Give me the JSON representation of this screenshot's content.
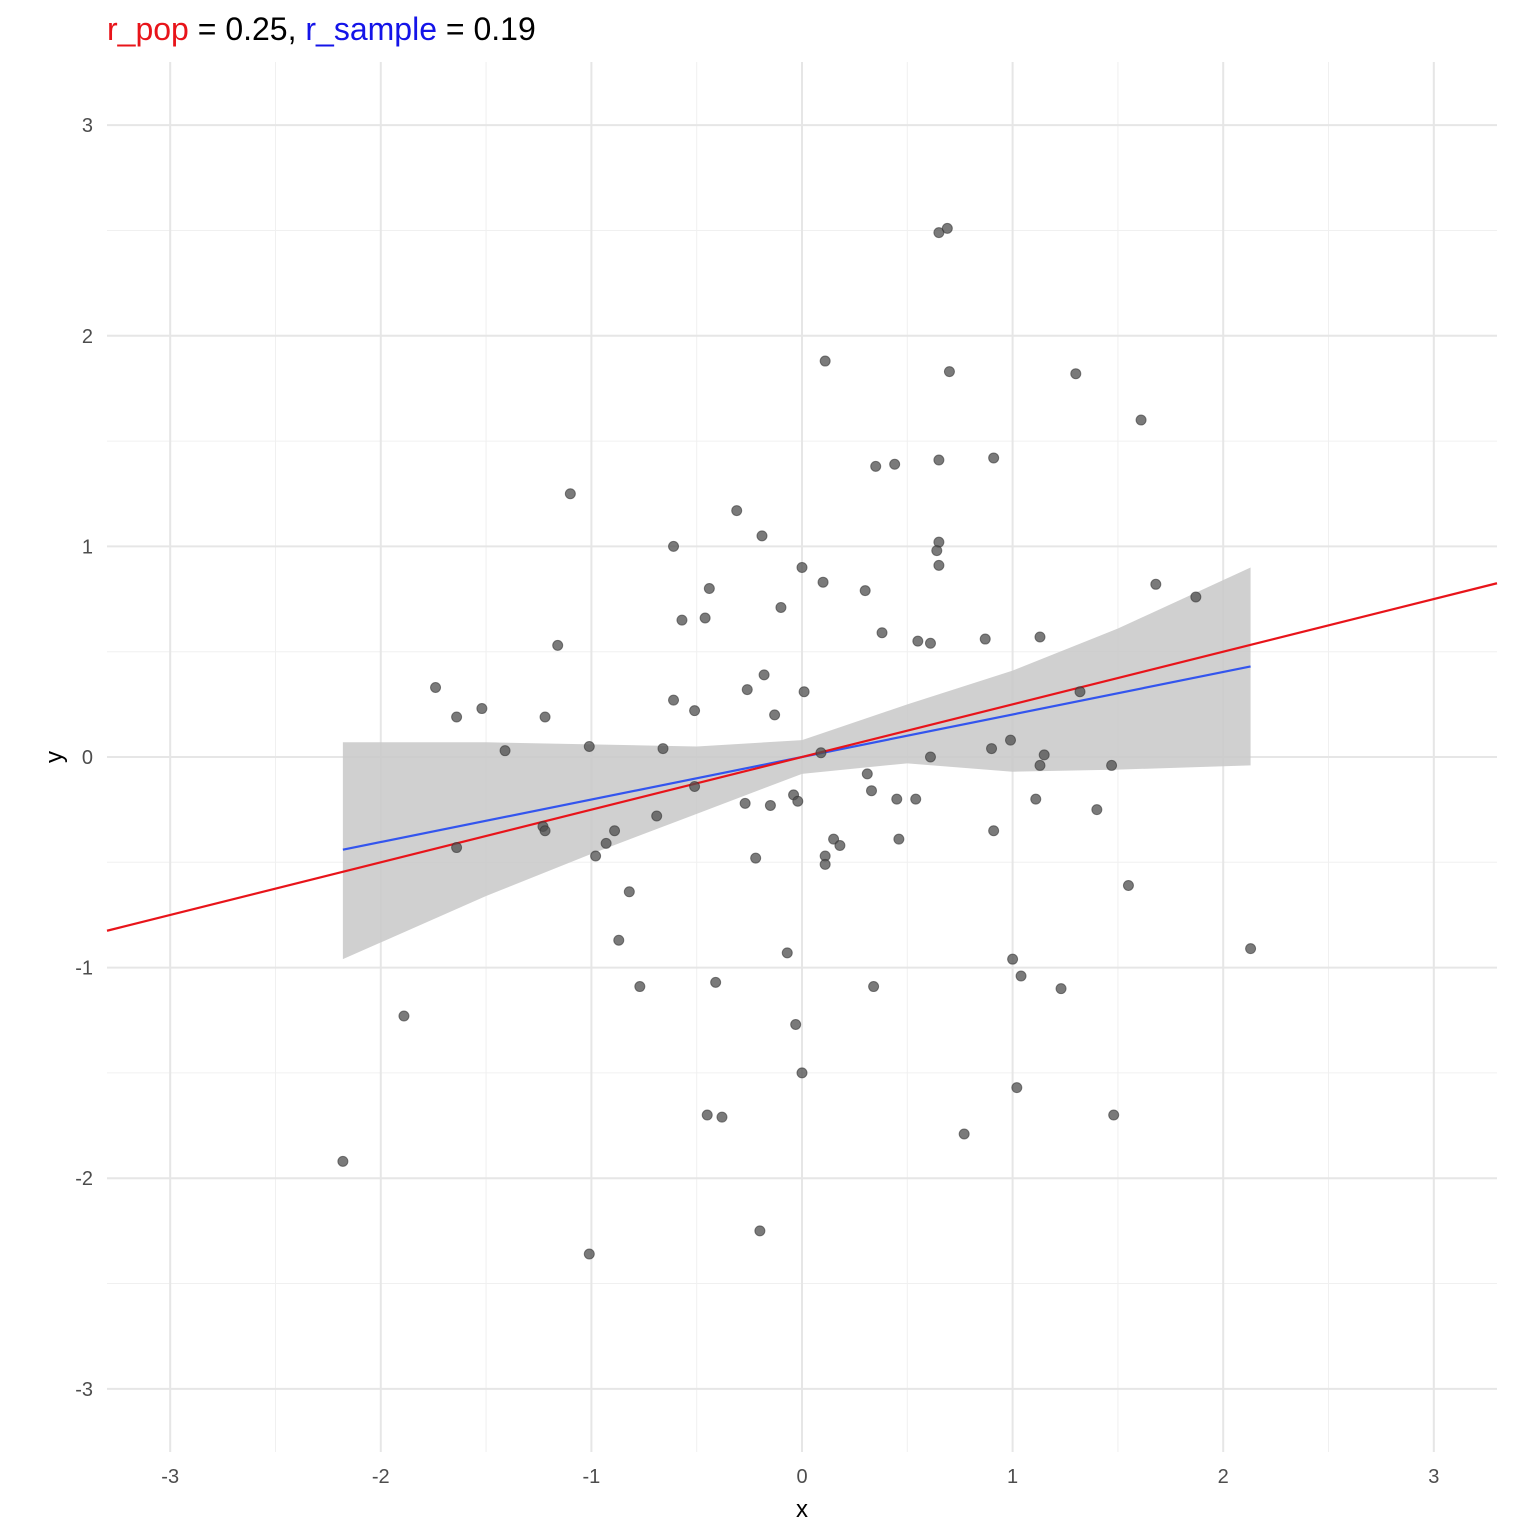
{
  "chart_data": {
    "type": "scatter",
    "title_parts": [
      {
        "text": "r_pop",
        "color": "#e8141a"
      },
      {
        "text": " = 0.25, ",
        "color": "#000000"
      },
      {
        "text": "r_sample",
        "color": "#1414e8"
      },
      {
        "text": " = 0.19",
        "color": "#000000"
      }
    ],
    "xlabel": "x",
    "ylabel": "y",
    "xlim": [
      -3.3,
      3.3
    ],
    "ylim": [
      -3.3,
      3.3
    ],
    "x_ticks": [
      -3,
      -2,
      -1,
      0,
      1,
      2,
      3
    ],
    "y_ticks": [
      -3,
      -2,
      -1,
      0,
      1,
      2,
      3
    ],
    "grid": true,
    "colors": {
      "points": "#4d4d4d",
      "population_line": "#e8141a",
      "sample_line": "#3355ee",
      "confidence_band": "#c8c8c8",
      "grid_major": "#e6e6e6",
      "grid_minor": "#f0f0f0"
    },
    "population_line": {
      "slope": 0.25,
      "intercept": 0
    },
    "sample_line": {
      "x_range": [
        -2.18,
        2.13
      ],
      "y_start": -0.44,
      "y_end": 0.43
    },
    "confidence_band": {
      "x": [
        -2.18,
        -1.5,
        -1.0,
        -0.5,
        0.0,
        0.5,
        1.0,
        1.5,
        2.13
      ],
      "lower": [
        -0.96,
        -0.66,
        -0.46,
        -0.27,
        -0.08,
        -0.03,
        -0.07,
        -0.06,
        -0.04
      ],
      "upper": [
        0.07,
        0.07,
        0.06,
        0.05,
        0.08,
        0.25,
        0.41,
        0.61,
        0.9
      ]
    },
    "points": [
      [
        0.65,
        2.49
      ],
      [
        0.69,
        2.51
      ],
      [
        0.11,
        1.88
      ],
      [
        0.7,
        1.83
      ],
      [
        1.3,
        1.82
      ],
      [
        1.61,
        1.6
      ],
      [
        0.91,
        1.42
      ],
      [
        0.44,
        1.39
      ],
      [
        0.35,
        1.38
      ],
      [
        0.65,
        1.41
      ],
      [
        -1.1,
        1.25
      ],
      [
        -0.31,
        1.17
      ],
      [
        -0.19,
        1.05
      ],
      [
        0.65,
        1.02
      ],
      [
        -0.61,
        1.0
      ],
      [
        0.64,
        0.98
      ],
      [
        0.65,
        0.91
      ],
      [
        0.0,
        0.9
      ],
      [
        0.1,
        0.83
      ],
      [
        -0.44,
        0.8
      ],
      [
        0.3,
        0.79
      ],
      [
        1.68,
        0.82
      ],
      [
        1.87,
        0.76
      ],
      [
        -0.1,
        0.71
      ],
      [
        -0.46,
        0.66
      ],
      [
        -0.57,
        0.65
      ],
      [
        0.38,
        0.59
      ],
      [
        0.87,
        0.56
      ],
      [
        1.13,
        0.57
      ],
      [
        0.55,
        0.55
      ],
      [
        0.61,
        0.54
      ],
      [
        -1.16,
        0.53
      ],
      [
        -0.18,
        0.39
      ],
      [
        -1.74,
        0.33
      ],
      [
        -0.26,
        0.32
      ],
      [
        0.01,
        0.31
      ],
      [
        1.32,
        0.31
      ],
      [
        -0.61,
        0.27
      ],
      [
        -1.52,
        0.23
      ],
      [
        -0.51,
        0.22
      ],
      [
        -0.13,
        0.2
      ],
      [
        -1.64,
        0.19
      ],
      [
        -1.22,
        0.19
      ],
      [
        -1.01,
        0.05
      ],
      [
        -0.66,
        0.04
      ],
      [
        -1.41,
        0.03
      ],
      [
        0.09,
        0.02
      ],
      [
        0.9,
        0.04
      ],
      [
        0.99,
        0.08
      ],
      [
        1.15,
        0.01
      ],
      [
        0.61,
        0.0
      ],
      [
        1.13,
        -0.04
      ],
      [
        1.47,
        -0.04
      ],
      [
        0.31,
        -0.08
      ],
      [
        -0.51,
        -0.14
      ],
      [
        0.33,
        -0.16
      ],
      [
        -0.04,
        -0.18
      ],
      [
        -0.02,
        -0.21
      ],
      [
        0.45,
        -0.2
      ],
      [
        0.54,
        -0.2
      ],
      [
        1.11,
        -0.2
      ],
      [
        -0.27,
        -0.22
      ],
      [
        -0.15,
        -0.23
      ],
      [
        1.4,
        -0.25
      ],
      [
        -0.69,
        -0.28
      ],
      [
        -1.23,
        -0.33
      ],
      [
        -1.22,
        -0.35
      ],
      [
        -0.89,
        -0.35
      ],
      [
        0.91,
        -0.35
      ],
      [
        0.15,
        -0.39
      ],
      [
        0.46,
        -0.39
      ],
      [
        -0.93,
        -0.41
      ],
      [
        0.18,
        -0.42
      ],
      [
        -1.64,
        -0.43
      ],
      [
        -0.98,
        -0.47
      ],
      [
        0.11,
        -0.47
      ],
      [
        -0.22,
        -0.48
      ],
      [
        0.11,
        -0.51
      ],
      [
        1.55,
        -0.61
      ],
      [
        -0.82,
        -0.64
      ],
      [
        -0.87,
        -0.87
      ],
      [
        2.13,
        -0.91
      ],
      [
        -0.07,
        -0.93
      ],
      [
        1.0,
        -0.96
      ],
      [
        1.04,
        -1.04
      ],
      [
        -0.77,
        -1.09
      ],
      [
        -0.41,
        -1.07
      ],
      [
        0.34,
        -1.09
      ],
      [
        1.23,
        -1.1
      ],
      [
        -1.89,
        -1.23
      ],
      [
        -0.03,
        -1.27
      ],
      [
        0.0,
        -1.5
      ],
      [
        1.02,
        -1.57
      ],
      [
        -0.45,
        -1.7
      ],
      [
        -0.38,
        -1.71
      ],
      [
        1.48,
        -1.7
      ],
      [
        0.77,
        -1.79
      ],
      [
        -2.18,
        -1.92
      ],
      [
        -0.2,
        -2.25
      ],
      [
        -1.01,
        -2.36
      ]
    ]
  }
}
